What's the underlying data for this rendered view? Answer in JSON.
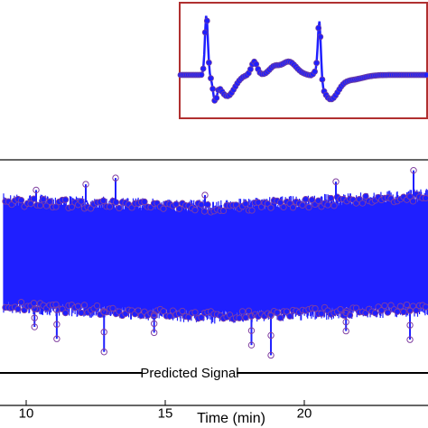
{
  "chart_data": [
    {
      "type": "line",
      "role": "main",
      "xlabel": "Time (min)",
      "ylabel": "",
      "xlim": [
        9.3,
        24
      ],
      "xticks": [
        10,
        15,
        20
      ],
      "annotation": "Predicted Signal",
      "grid": false,
      "legend": "none",
      "marker": "circle",
      "series_color": "#1f1fff",
      "marker_edge_color": "#8040a0",
      "features": {
        "envelope_upper_start": 0.78,
        "envelope_upper_mid": 0.7,
        "envelope_upper_end": 0.84,
        "envelope_lower_start": 0.6,
        "envelope_lower_mid": 0.74,
        "envelope_lower_end": 0.64,
        "outlier_spikes_x": [
          10.3,
          11.1,
          12.8,
          14.6,
          18.1,
          18.8,
          21.5,
          23.8
        ]
      }
    },
    {
      "type": "line",
      "role": "inset",
      "frame_color": "#b03030",
      "marker": "circle",
      "series_color": "#1f1fff",
      "description_values": {
        "baseline": 0.0,
        "r_peaks_x": [
          0.14,
          0.78
        ],
        "r_peak_height": 1.0
      }
    }
  ]
}
